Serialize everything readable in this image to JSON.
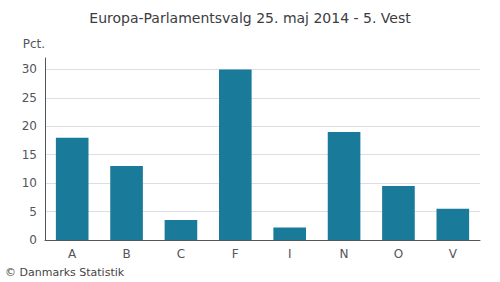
{
  "chart_data": {
    "type": "bar",
    "title": "Europa-Parlamentsvalg 25. maj 2014 - 5. Vest",
    "categories": [
      "A",
      "B",
      "C",
      "F",
      "I",
      "N",
      "O",
      "V"
    ],
    "values": [
      18.0,
      13.0,
      3.5,
      30.0,
      2.2,
      19.0,
      9.5,
      5.5
    ],
    "color": "#1a7a9a",
    "ylabel": "Pct.",
    "footer": "© Danmarks Statistik",
    "ylim": [
      0,
      32
    ],
    "yticks": [
      0,
      5,
      10,
      15,
      20,
      25,
      30
    ],
    "grid": true
  }
}
